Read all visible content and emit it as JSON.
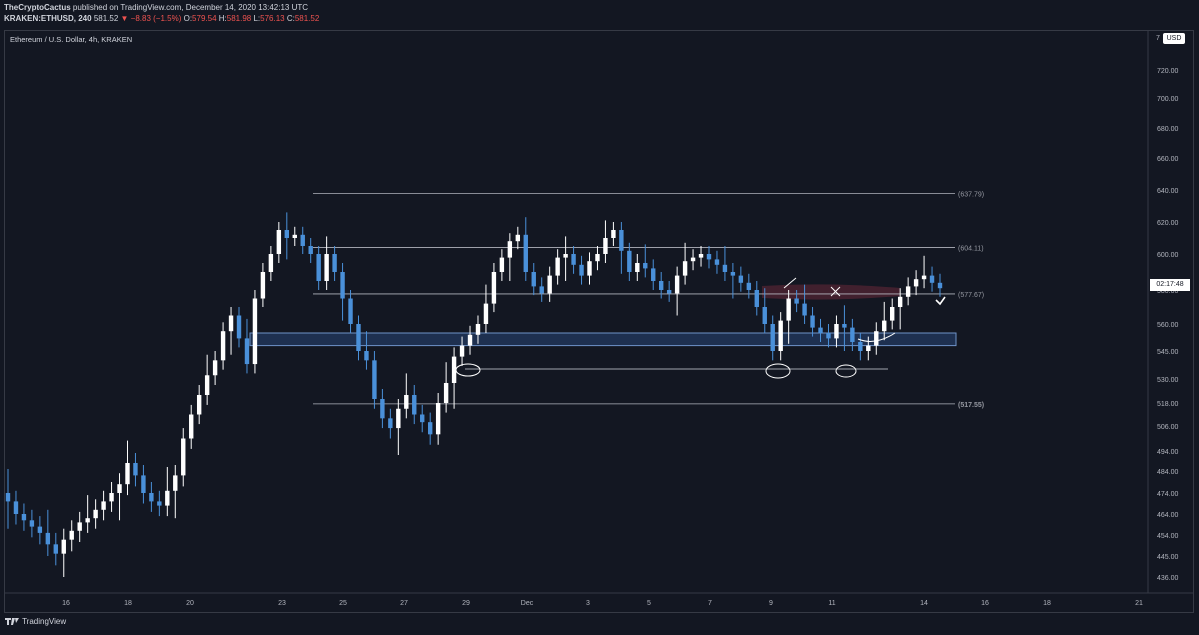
{
  "header": {
    "author": "TheCryptoCactus",
    "published": "published on TradingView.com, December 14, 2020 13:42:13 UTC",
    "symbol": "KRAKEN:ETHUSD, 240",
    "last": "581.52",
    "change": "▼ −8.83 (−1.5%)",
    "o_label": "O:",
    "o": "579.54",
    "h_label": "H:",
    "h": "581.98",
    "l_label": "L:",
    "l": "576.13",
    "c_label": "C:",
    "c": "581.52"
  },
  "legend": "Ethereum / U.S. Dollar, 4h, KRAKEN",
  "currency": "USD",
  "top_axis_char": "7",
  "countdown": "02:17:48",
  "footer": {
    "brand": "TradingView"
  },
  "colors": {
    "bg": "#131722",
    "up": "#ffffff",
    "down": "#4a90d9",
    "zone": "#3a5a8c",
    "resistance": "#5a2a3a"
  },
  "chart_data": {
    "type": "candlestick",
    "y_ticks": [
      "720.00",
      "700.00",
      "680.00",
      "660.00",
      "640.00",
      "620.00",
      "600.00",
      "580.00",
      "560.00",
      "545.00",
      "530.00",
      "518.00",
      "506.00",
      "494.00",
      "484.00",
      "474.00",
      "464.00",
      "454.00",
      "445.00",
      "436.00"
    ],
    "x_ticks": [
      "16",
      "18",
      "20",
      "23",
      "25",
      "27",
      "29",
      "Dec",
      "3",
      "5",
      "7",
      "9",
      "11",
      "14",
      "16",
      "18",
      "21"
    ],
    "levels": [
      {
        "label": "(637.79)",
        "value": 637.79
      },
      {
        "label": "(604.11)",
        "value": 604.11
      },
      {
        "label": "(577.67)",
        "value": 577.67
      },
      {
        "label": "(517.55)",
        "value": 517.55
      }
    ],
    "support_zone": [
      548,
      555
    ],
    "series_close": [
      470,
      464,
      461,
      458,
      455,
      450,
      446,
      452,
      456,
      460,
      462,
      466,
      470,
      474,
      478,
      488,
      482,
      474,
      470,
      468,
      475,
      482,
      500,
      512,
      522,
      532,
      540,
      556,
      565,
      552,
      538,
      575,
      590,
      600,
      615,
      610,
      612,
      605,
      600,
      585,
      600,
      590,
      575,
      560,
      545,
      540,
      520,
      510,
      505,
      515,
      522,
      512,
      508,
      502,
      518,
      528,
      542,
      548,
      554,
      560,
      572,
      590,
      598,
      608,
      612,
      590,
      582,
      578,
      588,
      598,
      600,
      594,
      588,
      596,
      600,
      610,
      615,
      602,
      590,
      595,
      592,
      585,
      580,
      578,
      588,
      596,
      598,
      600,
      597,
      594,
      590,
      588,
      584,
      580,
      570,
      560,
      545,
      562,
      575,
      572,
      565,
      558,
      555,
      552,
      560,
      558,
      550,
      545,
      548,
      556,
      562,
      570,
      576,
      582,
      586,
      588,
      584,
      581
    ]
  }
}
